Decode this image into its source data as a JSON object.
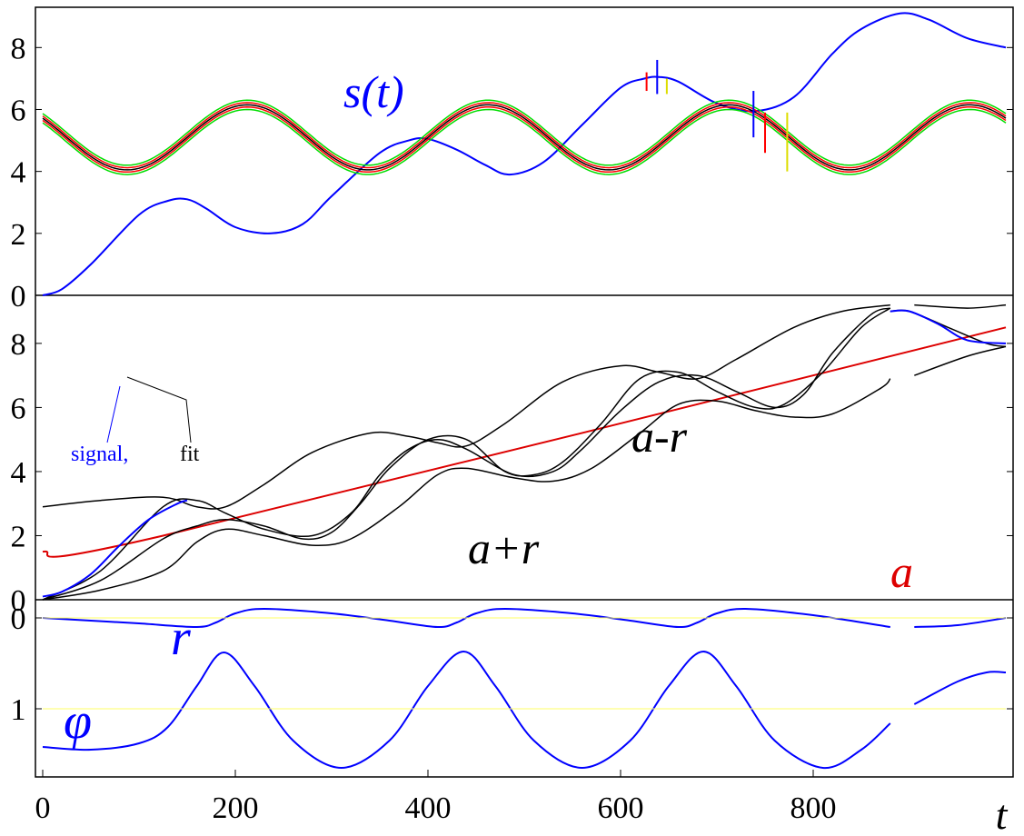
{
  "chart_data": {
    "type": "line",
    "xlabel": "t",
    "xlim": [
      0,
      1000
    ],
    "x_ticks": [
      "0",
      "200",
      "400",
      "600",
      "800"
    ],
    "panels": [
      {
        "name": "top",
        "ylim": [
          9.3,
          0
        ],
        "y_ticks": [
          "0",
          "2",
          "4",
          "6",
          "8"
        ],
        "annotations": [
          {
            "text": "s(t)",
            "color": "#0000ff"
          }
        ],
        "series": [
          {
            "name": "s(t)",
            "color": "#0000ff",
            "x": [
              0,
              20,
              50,
              100,
              130,
              150,
              170,
              200,
              237,
              270,
              300,
              350,
              380,
              400,
              430,
              460,
              485,
              520,
              560,
              600,
              625,
              640,
              660,
              700,
              740,
              780,
              820,
              850,
              890,
              920,
              960,
              1000
            ],
            "y": [
              0,
              0.2,
              1.0,
              2.6,
              3.05,
              3.1,
              2.8,
              2.2,
              2.0,
              2.3,
              3.2,
              4.6,
              5.0,
              5.05,
              4.7,
              4.2,
              3.9,
              4.3,
              5.5,
              6.7,
              7.0,
              7.05,
              6.9,
              6.2,
              5.95,
              6.4,
              7.8,
              8.6,
              9.1,
              8.9,
              8.3,
              8.0
            ]
          },
          {
            "name": "band-outer-upper",
            "color": "#00dd00",
            "func": "sin",
            "offset": 4.95,
            "amp": 1.05,
            "period": 250,
            "phase_t": 25
          },
          {
            "name": "band-outer-lower",
            "color": "#00dd00",
            "func": "sin",
            "offset": 5.25,
            "amp": 1.05,
            "period": 250,
            "phase_t": 25
          },
          {
            "name": "band-inner-upper",
            "color": "#ff0000",
            "func": "sin",
            "offset": 5.03,
            "amp": 1.05,
            "period": 250,
            "phase_t": 25
          },
          {
            "name": "band-inner-lower",
            "color": "#ff0000",
            "func": "sin",
            "offset": 5.17,
            "amp": 1.05,
            "period": 250,
            "phase_t": 25
          },
          {
            "name": "band-center",
            "color": "#000000",
            "func": "sin",
            "offset": 5.1,
            "amp": 1.05,
            "period": 250,
            "phase_t": 25
          }
        ],
        "markers": [
          {
            "x": 627,
            "y1": 6.6,
            "y2": 7.2,
            "color": "#ff0000"
          },
          {
            "x": 638,
            "y1": 6.5,
            "y2": 7.6,
            "color": "#0000ff"
          },
          {
            "x": 648,
            "y1": 6.5,
            "y2": 7.0,
            "color": "#dddd00"
          },
          {
            "x": 738,
            "y1": 5.1,
            "y2": 6.6,
            "color": "#0000ff"
          },
          {
            "x": 750,
            "y1": 4.6,
            "y2": 5.9,
            "color": "#ff0000"
          },
          {
            "x": 773,
            "y1": 4.0,
            "y2": 5.9,
            "color": "#dddd00"
          }
        ]
      },
      {
        "name": "middle",
        "ylim": [
          9.5,
          0
        ],
        "y_ticks": [
          "0",
          "2",
          "4",
          "6",
          "8"
        ],
        "annotations": [
          {
            "text": "a-r",
            "color": "#000000"
          },
          {
            "text": "a+r",
            "color": "#000000"
          },
          {
            "text": "a",
            "color": "#dd0000"
          },
          {
            "text": "signal,",
            "color": "#0000ff"
          },
          {
            "text": "fit",
            "color": "#000000"
          }
        ],
        "series": [
          {
            "name": "a",
            "color": "#dd0000",
            "x": [
              0,
              125,
              1000
            ],
            "y": [
              1.5,
              2.0,
              8.5
            ]
          },
          {
            "name": "a-r",
            "color": "#000000",
            "x": [
              0,
              60,
              125,
              160,
              190,
              230,
              280,
              320,
              370,
              410,
              440,
              490,
              530,
              570,
              620,
              660,
              700,
              740,
              780,
              820,
              870,
              880
            ],
            "y": [
              0.0,
              0.3,
              0.9,
              1.8,
              2.2,
              2.0,
              1.7,
              1.9,
              2.9,
              3.9,
              4.1,
              3.8,
              3.7,
              4.1,
              5.2,
              6.1,
              6.2,
              5.9,
              5.7,
              5.8,
              6.6,
              6.9
            ]
          },
          {
            "name": "a-r-2",
            "color": "#000000",
            "x": [
              905,
              960,
              1000
            ],
            "y": [
              7.0,
              7.6,
              7.9
            ]
          },
          {
            "name": "a+r",
            "color": "#000000",
            "x": [
              0,
              60,
              125,
              160,
              190,
              230,
              280,
              340,
              380,
              410,
              440,
              480,
              540,
              600,
              640,
              680,
              720,
              780,
              830,
              880
            ],
            "y": [
              2.9,
              3.1,
              3.2,
              2.9,
              2.9,
              3.6,
              4.6,
              5.2,
              5.1,
              4.9,
              4.8,
              5.5,
              6.8,
              7.3,
              7.1,
              6.9,
              7.5,
              8.5,
              9.0,
              9.2
            ]
          },
          {
            "name": "a+r-2",
            "color": "#000000",
            "x": [
              905,
              960,
              1000
            ],
            "y": [
              9.2,
              9.1,
              9.2
            ]
          },
          {
            "name": "mid-curve-1",
            "color": "#000000",
            "x": [
              0,
              60,
              125,
              160,
              190,
              230,
              280,
              320,
              350,
              380,
              410,
              440,
              490,
              530,
              560,
              600,
              640,
              680,
              720,
              760,
              790,
              820,
              860,
              880
            ],
            "y": [
              0.0,
              0.9,
              2.9,
              3.1,
              2.7,
              2.2,
              2.0,
              2.7,
              3.9,
              4.7,
              5.0,
              4.7,
              3.9,
              4.0,
              4.7,
              5.9,
              6.8,
              7.0,
              6.5,
              6.0,
              6.4,
              7.7,
              8.9,
              9.1
            ]
          },
          {
            "name": "mid-curve-2",
            "color": "#000000",
            "x": [
              0,
              60,
              125,
              160,
              190,
              230,
              270,
              300,
              330,
              360,
              400,
              440,
              480,
              510,
              540,
              580,
              620,
              660,
              700,
              740,
              770,
              810,
              850,
              880
            ],
            "y": [
              0.0,
              0.6,
              1.9,
              2.3,
              2.5,
              2.3,
              1.9,
              2.1,
              3.0,
              4.1,
              5.0,
              5.0,
              4.0,
              3.9,
              4.3,
              5.5,
              6.9,
              7.1,
              6.5,
              6.0,
              6.1,
              7.1,
              8.5,
              9.1
            ]
          },
          {
            "name": "fit-right",
            "color": "#000000",
            "x": [
              880,
              900,
              940,
              980,
              1000
            ],
            "y": [
              9.0,
              9.0,
              8.5,
              8.0,
              7.9
            ]
          },
          {
            "name": "signal",
            "color": "#0000ff",
            "x": [
              0,
              20,
              50,
              80,
              110,
              140,
              150
            ],
            "y": [
              0.1,
              0.25,
              0.8,
              1.7,
              2.5,
              3.0,
              3.1
            ]
          },
          {
            "name": "signal-right",
            "color": "#0000ff",
            "x": [
              880,
              900,
              930,
              960,
              1000
            ],
            "y": [
              9.0,
              9.0,
              8.6,
              8.1,
              8.0
            ]
          }
        ]
      },
      {
        "name": "bottom",
        "ylim": [
          -0.2,
          1.75
        ],
        "y_ticks": [
          "0",
          "1"
        ],
        "annotations": [
          {
            "text": "r",
            "color": "#0000ff"
          },
          {
            "text": "φ",
            "color": "#0000ff"
          }
        ],
        "series": [
          {
            "name": "r",
            "color": "#0000ff",
            "x": [
              0,
              50,
              100,
              130,
              160,
              188,
              220,
              260,
              310,
              360,
              400,
              437,
              470,
              510,
              560,
              610,
              650,
              686,
              720,
              760,
              810,
              850,
              880
            ],
            "y": [
              1.42,
              1.45,
              1.38,
              1.2,
              0.75,
              0.38,
              0.75,
              1.35,
              1.65,
              1.35,
              0.75,
              0.37,
              0.75,
              1.35,
              1.65,
              1.35,
              0.75,
              0.37,
              0.75,
              1.35,
              1.65,
              1.45,
              1.16
            ]
          },
          {
            "name": "r-2",
            "color": "#0000ff",
            "x": [
              905,
              950,
              980,
              1000
            ],
            "y": [
              0.95,
              0.7,
              0.6,
              0.6
            ]
          },
          {
            "name": "phi",
            "color": "#0000ff",
            "x": [
              0,
              50,
              100,
              160,
              180,
              200,
              230,
              300,
              360,
              410,
              430,
              450,
              480,
              550,
              610,
              660,
              680,
              700,
              730,
              800,
              880
            ],
            "y": [
              0.0,
              0.03,
              0.06,
              0.1,
              0.05,
              -0.05,
              -0.1,
              -0.05,
              0.03,
              0.1,
              0.05,
              -0.05,
              -0.1,
              -0.05,
              0.03,
              0.1,
              0.05,
              -0.05,
              -0.1,
              -0.03,
              0.1
            ]
          },
          {
            "name": "phi-2",
            "color": "#0000ff",
            "x": [
              905,
              950,
              1000
            ],
            "y": [
              0.1,
              0.08,
              0.0
            ]
          },
          {
            "name": "ref-1",
            "color": "#ffff66",
            "x": [
              0,
              1000
            ],
            "y": [
              1,
              1
            ]
          },
          {
            "name": "ref-0",
            "color": "#ffff66",
            "x": [
              0,
              1000
            ],
            "y": [
              0,
              0
            ]
          }
        ]
      }
    ]
  }
}
